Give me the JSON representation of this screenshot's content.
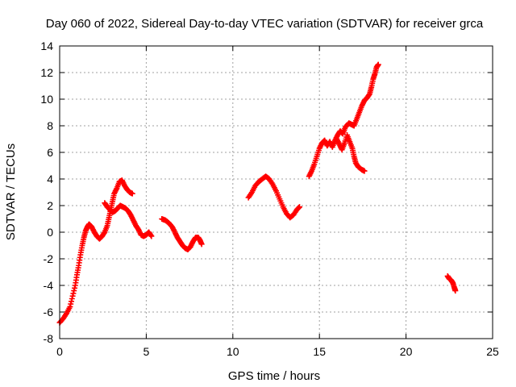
{
  "chart_data": {
    "type": "scatter",
    "title": "Day 060 of 2022, Sidereal Day-to-day VTEC variation (SDTVAR) for receiver grca",
    "xlabel": "GPS time / hours",
    "ylabel": "SDTVAR / TECUs",
    "xlim": [
      0,
      25
    ],
    "ylim": [
      -8,
      14
    ],
    "xticks": [
      0,
      5,
      10,
      15,
      20,
      25
    ],
    "yticks": [
      -8,
      -6,
      -4,
      -2,
      0,
      2,
      4,
      6,
      8,
      10,
      12,
      14
    ],
    "grid": true,
    "marker": "plus",
    "color": "#ff0000",
    "series": [
      {
        "points": [
          [
            0.0,
            -6.8
          ],
          [
            0.2,
            -6.5
          ],
          [
            0.4,
            -6.1
          ],
          [
            0.6,
            -5.6
          ],
          [
            0.75,
            -4.8
          ],
          [
            0.9,
            -4.0
          ],
          [
            1.0,
            -3.2
          ],
          [
            1.1,
            -2.5
          ],
          [
            1.2,
            -1.7
          ],
          [
            1.3,
            -1.0
          ],
          [
            1.4,
            -0.4
          ],
          [
            1.5,
            0.1
          ],
          [
            1.6,
            0.4
          ],
          [
            1.7,
            0.6
          ],
          [
            1.85,
            0.4
          ],
          [
            2.0,
            0.0
          ],
          [
            2.15,
            -0.3
          ],
          [
            2.3,
            -0.5
          ],
          [
            2.45,
            -0.3
          ],
          [
            2.6,
            0.0
          ],
          [
            2.75,
            0.5
          ],
          [
            2.85,
            1.1
          ],
          [
            2.95,
            1.7
          ],
          [
            3.05,
            2.3
          ],
          [
            3.15,
            2.9
          ],
          [
            3.3,
            3.3
          ],
          [
            3.45,
            3.8
          ],
          [
            3.6,
            3.9
          ],
          [
            3.75,
            3.5
          ],
          [
            3.9,
            3.2
          ],
          [
            4.05,
            3.0
          ],
          [
            4.2,
            2.9
          ]
        ]
      },
      {
        "points": [
          [
            2.6,
            2.2
          ],
          [
            2.75,
            1.9
          ],
          [
            2.9,
            1.7
          ],
          [
            3.05,
            1.5
          ],
          [
            3.2,
            1.6
          ],
          [
            3.35,
            1.8
          ],
          [
            3.5,
            2.0
          ],
          [
            3.65,
            1.9
          ],
          [
            3.8,
            1.8
          ],
          [
            3.95,
            1.6
          ],
          [
            4.1,
            1.3
          ],
          [
            4.25,
            0.9
          ],
          [
            4.4,
            0.5
          ],
          [
            4.55,
            0.2
          ],
          [
            4.7,
            -0.2
          ],
          [
            4.85,
            -0.3
          ],
          [
            5.0,
            -0.2
          ],
          [
            5.15,
            0.0
          ],
          [
            5.3,
            -0.3
          ]
        ]
      },
      {
        "points": [
          [
            5.9,
            1.0
          ],
          [
            6.1,
            0.9
          ],
          [
            6.3,
            0.7
          ],
          [
            6.5,
            0.4
          ],
          [
            6.65,
            0.0
          ],
          [
            6.8,
            -0.4
          ],
          [
            6.95,
            -0.7
          ],
          [
            7.1,
            -1.0
          ],
          [
            7.25,
            -1.2
          ],
          [
            7.4,
            -1.3
          ],
          [
            7.55,
            -1.1
          ],
          [
            7.7,
            -0.7
          ],
          [
            7.85,
            -0.4
          ],
          [
            8.0,
            -0.4
          ],
          [
            8.1,
            -0.6
          ],
          [
            8.2,
            -0.9
          ]
        ]
      },
      {
        "points": [
          [
            10.9,
            2.6
          ],
          [
            11.1,
            3.0
          ],
          [
            11.3,
            3.5
          ],
          [
            11.5,
            3.8
          ],
          [
            11.7,
            4.0
          ],
          [
            11.9,
            4.2
          ],
          [
            12.1,
            4.0
          ],
          [
            12.3,
            3.6
          ],
          [
            12.5,
            3.1
          ],
          [
            12.7,
            2.5
          ],
          [
            12.9,
            1.9
          ],
          [
            13.1,
            1.4
          ],
          [
            13.3,
            1.1
          ],
          [
            13.5,
            1.3
          ],
          [
            13.7,
            1.7
          ],
          [
            13.85,
            1.9
          ]
        ]
      },
      {
        "points": [
          [
            14.4,
            4.2
          ],
          [
            14.55,
            4.6
          ],
          [
            14.7,
            5.1
          ],
          [
            14.85,
            5.7
          ],
          [
            15.0,
            6.3
          ],
          [
            15.15,
            6.7
          ],
          [
            15.3,
            6.9
          ],
          [
            15.45,
            6.5
          ],
          [
            15.6,
            6.8
          ],
          [
            15.75,
            6.4
          ],
          [
            15.9,
            6.9
          ],
          [
            16.05,
            7.3
          ],
          [
            16.2,
            7.6
          ],
          [
            16.35,
            7.4
          ],
          [
            16.5,
            7.9
          ],
          [
            16.7,
            8.2
          ],
          [
            16.85,
            8.1
          ],
          [
            17.0,
            8.0
          ],
          [
            17.15,
            8.5
          ],
          [
            17.3,
            9.0
          ],
          [
            17.45,
            9.5
          ],
          [
            17.6,
            9.9
          ],
          [
            17.75,
            10.1
          ],
          [
            17.9,
            10.4
          ],
          [
            18.0,
            10.9
          ],
          [
            18.1,
            11.5
          ],
          [
            18.2,
            11.9
          ],
          [
            18.3,
            12.4
          ],
          [
            18.4,
            12.6
          ]
        ]
      },
      {
        "points": [
          [
            16.0,
            7.0
          ],
          [
            16.15,
            6.6
          ],
          [
            16.3,
            6.2
          ],
          [
            16.45,
            6.7
          ],
          [
            16.6,
            7.3
          ],
          [
            16.75,
            6.8
          ],
          [
            16.9,
            6.3
          ],
          [
            17.0,
            5.7
          ],
          [
            17.1,
            5.2
          ],
          [
            17.25,
            4.9
          ],
          [
            17.45,
            4.7
          ],
          [
            17.6,
            4.6
          ]
        ]
      },
      {
        "points": [
          [
            22.4,
            -3.3
          ],
          [
            22.5,
            -3.5
          ],
          [
            22.6,
            -3.6
          ],
          [
            22.7,
            -3.8
          ],
          [
            22.8,
            -4.2
          ],
          [
            22.85,
            -4.4
          ]
        ]
      }
    ]
  }
}
